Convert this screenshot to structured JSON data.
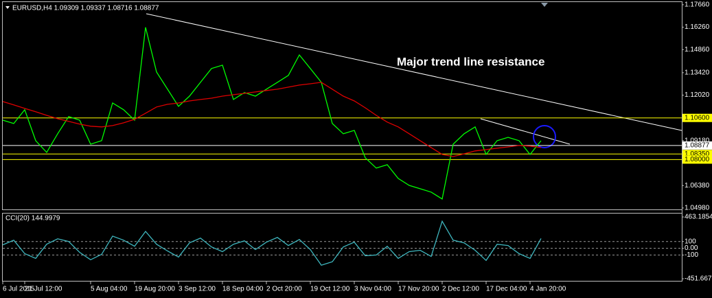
{
  "chart_data": [
    {
      "type": "line",
      "title": "EURUSD,H4  1.09309 1.09337 1.08716 1.08877",
      "annotation": "Major trend line resistance",
      "categories": [
        "6 Jul 2015",
        null,
        "21 Jul 12:00",
        null,
        null,
        null,
        null,
        null,
        "5 Aug 04:00",
        null,
        null,
        null,
        "19 Aug 20:00",
        null,
        null,
        null,
        "3 Sep 12:00",
        null,
        null,
        null,
        "18 Sep 04:00",
        null,
        null,
        null,
        "2 Oct 20:00",
        null,
        null,
        null,
        "19 Oct 12:00",
        null,
        null,
        null,
        "3 Nov 04:00",
        null,
        null,
        null,
        "17 Nov 20:00",
        null,
        null,
        null,
        "2 Dec 12:00",
        null,
        null,
        null,
        "17 Dec 04:00",
        null,
        null,
        null,
        "4 Jan 20:00",
        null
      ],
      "series": [
        {
          "color": "#00ff00",
          "values": [
            1.1046,
            1.1025,
            1.1111,
            1.0918,
            1.0845,
            1.0961,
            1.1068,
            1.1046,
            1.0896,
            1.0918,
            1.1153,
            1.1111,
            1.1046,
            1.1625,
            1.1346,
            1.1239,
            1.1132,
            1.1196,
            1.1282,
            1.1368,
            1.1389,
            1.1175,
            1.1218,
            1.1196,
            1.1239,
            1.1282,
            1.1325,
            1.1453,
            1.1368,
            1.1282,
            1.1025,
            1.0961,
            1.0982,
            1.0811,
            1.0747,
            1.0768,
            1.0682,
            1.0639,
            1.0618,
            1.0597,
            1.0554,
            1.0896,
            1.0961,
            1.1004,
            1.0832,
            1.0918,
            1.0939,
            1.0918,
            1.0832,
            1.0918
          ]
        },
        {
          "color": "#e00000",
          "values": [
            1.1162,
            1.1141,
            1.1119,
            1.1098,
            1.1076,
            1.1055,
            1.1038,
            1.1021,
            1.1008,
            1.1004,
            1.1012,
            1.1029,
            1.1051,
            1.1089,
            1.1128,
            1.1145,
            1.1153,
            1.1166,
            1.1175,
            1.1183,
            1.1196,
            1.1205,
            1.1213,
            1.1222,
            1.1231,
            1.1239,
            1.1252,
            1.1265,
            1.1273,
            1.1282,
            1.1239,
            1.1196,
            1.1166,
            1.1123,
            1.1076,
            1.1034,
            1.1004,
            1.0961,
            1.0918,
            1.0875,
            1.0832,
            1.0819,
            1.0836,
            1.0854,
            1.0862,
            1.0871,
            1.0879,
            1.0888,
            1.0884,
            1.0875
          ]
        }
      ],
      "ylim": [
        1.0489,
        1.1787
      ],
      "yticks": [
        {
          "value": 1.1766,
          "label": "1.17660"
        },
        {
          "value": 1.1626,
          "label": "1.16260"
        },
        {
          "value": 1.1486,
          "label": "1.14860"
        },
        {
          "value": 1.1342,
          "label": "1.13420"
        },
        {
          "value": 1.1202,
          "label": "1.12020"
        },
        {
          "value": 1.106,
          "label": "1.10600",
          "color": "#ffff00"
        },
        {
          "value": 1.0918,
          "label": "1.09180"
        },
        {
          "value": 1.08877,
          "label": "1.08877",
          "color": "#ffffff"
        },
        {
          "value": 1.0835,
          "label": "1.08350",
          "color": "#ffff00"
        },
        {
          "value": 1.08,
          "label": "1.08000",
          "color": "#ffff00"
        },
        {
          "value": 1.0638,
          "label": "1.06380"
        },
        {
          "value": 1.0498,
          "label": "1.04980"
        }
      ]
    },
    {
      "type": "line",
      "title": "CCI(20) 144.9979",
      "grid": true,
      "series": [
        {
          "color": "#3fb8c0",
          "values": [
            50,
            120,
            -80,
            -150,
            60,
            140,
            100,
            -60,
            -170,
            -90,
            180,
            120,
            30,
            250,
            60,
            -40,
            -130,
            80,
            150,
            20,
            -50,
            60,
            110,
            -20,
            90,
            160,
            40,
            130,
            -20,
            -250,
            -200,
            20,
            90,
            -110,
            -100,
            30,
            -150,
            -50,
            -30,
            -120,
            400,
            120,
            80,
            -30,
            -180,
            60,
            40,
            -80,
            -150,
            145
          ]
        }
      ],
      "ylim": [
        -451.6679,
        463.1854
      ],
      "yticks": [
        463.1854,
        100,
        {
          "value": 0,
          "label": "0.00"
        },
        -100,
        -451.6679
      ]
    }
  ]
}
